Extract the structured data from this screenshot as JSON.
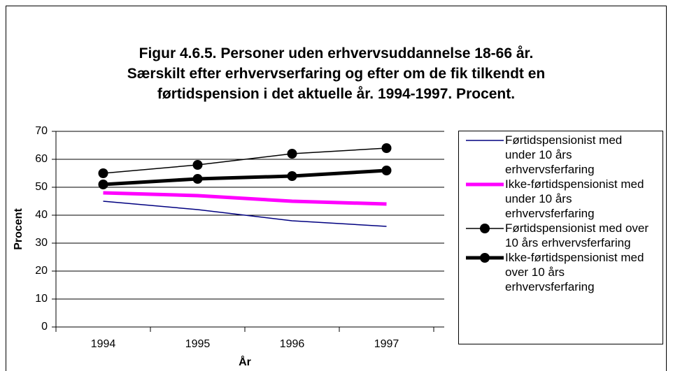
{
  "chart_data": {
    "type": "line",
    "title": [
      "Figur 4.6.5. Personer uden erhvervsuddannelse 18-66 år.",
      "Særskilt efter erhvervserfaring og efter om de fik tilkendt en",
      "førtidspension i det aktuelle år. 1994-1997. Procent."
    ],
    "x_label": "År",
    "y_label": "Procent",
    "categories": [
      "1994",
      "1995",
      "1996",
      "1997"
    ],
    "series": [
      {
        "name": "Førtidspensionist med under 10 års erhvervsferfaring",
        "color": "#000080",
        "line_width": 1.5,
        "marker": null,
        "values": [
          45,
          42,
          38,
          36
        ]
      },
      {
        "name": "Ikke-førtidspensionist med under 10 års erhvervsferfaring",
        "color": "#ff00ff",
        "line_width": 5,
        "marker": null,
        "values": [
          48,
          47,
          45,
          44
        ]
      },
      {
        "name": "Førtidspensionist med over 10 års erhvervsferfaring",
        "color": "#000000",
        "line_width": 1.5,
        "marker": "circle",
        "values": [
          55,
          58,
          62,
          64
        ]
      },
      {
        "name": "Ikke-førtidspensionist med over 10 års erhvervsferfaring",
        "color": "#000000",
        "line_width": 5,
        "marker": "circle",
        "values": [
          51,
          53,
          54,
          56
        ]
      }
    ],
    "ylim": [
      0,
      70
    ],
    "yticks": [
      0,
      10,
      20,
      30,
      40,
      50,
      60,
      70
    ],
    "grid": true,
    "legend": "right"
  }
}
